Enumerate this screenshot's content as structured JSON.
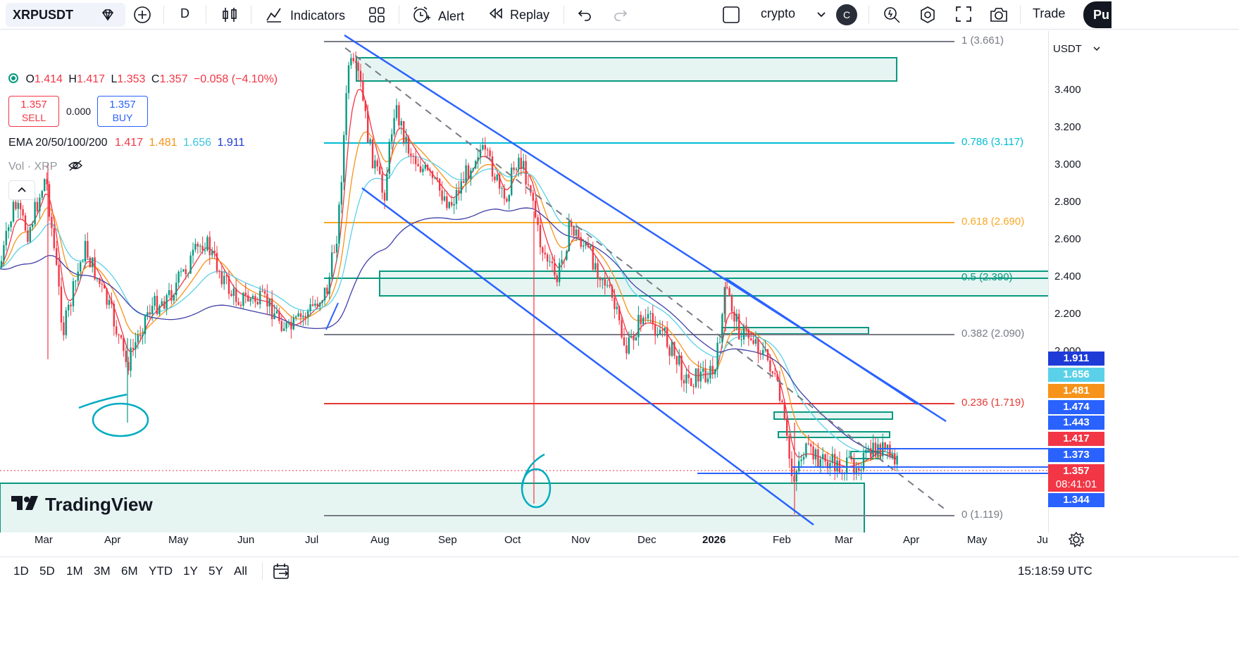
{
  "toolbar": {
    "symbol": "XRPUSDT",
    "interval": "D",
    "indicators_label": "Indicators",
    "alert_label": "Alert",
    "replay_label": "Replay",
    "layout_name": "crypto",
    "avatar_letter": "C",
    "trade_label": "Trade",
    "publish_label": "Pu"
  },
  "legend": {
    "o_label": "O",
    "o_value": "1.414",
    "h_label": "H",
    "h_value": "1.417",
    "l_label": "L",
    "l_value": "1.353",
    "c_label": "C",
    "c_value": "1.357",
    "change": "−0.058 (−4.10%)",
    "sell_price": "1.357",
    "sell_label": "SELL",
    "spread": "0.000",
    "buy_price": "1.357",
    "buy_label": "BUY",
    "ema_label": "EMA 20/50/100/200",
    "ema_values": [
      "1.417",
      "1.481",
      "1.656",
      "1.911"
    ],
    "vol_label": "Vol · XRP"
  },
  "fib_levels": [
    {
      "label": "1 (3.661)",
      "color": "#787b86"
    },
    {
      "label": "0.786 (3.117)",
      "color": "#00bcd4"
    },
    {
      "label": "0.618 (2.690)",
      "color": "#f9a825"
    },
    {
      "label": "0.5 (2.390)",
      "color": "#089981"
    },
    {
      "label": "0.382 (2.090)",
      "color": "#787b86"
    },
    {
      "label": "0.236 (1.719)",
      "color": "#e53935"
    },
    {
      "label": "0 (1.119)",
      "color": "#787b86"
    }
  ],
  "price_axis": {
    "currency": "USDT",
    "ticks": [
      "3.400",
      "3.200",
      "3.000",
      "2.800",
      "2.600",
      "2.400",
      "2.200",
      "2.000"
    ],
    "labels": [
      {
        "text": "1.911",
        "color": "#1e3bd8"
      },
      {
        "text": "1.656",
        "color": "#5ad1e8"
      },
      {
        "text": "1.481",
        "color": "#f7931a"
      },
      {
        "text": "1.474",
        "color": "#2962ff"
      },
      {
        "text": "1.443",
        "color": "#2962ff"
      },
      {
        "text": "1.417",
        "color": "#f23645"
      },
      {
        "text": "1.373",
        "color": "#2962ff"
      },
      {
        "text": "1.357",
        "color": "#f23645"
      },
      {
        "text": "08:41:01",
        "color": "#f23645"
      },
      {
        "text": "1.344",
        "color": "#2962ff"
      }
    ]
  },
  "time_axis": [
    "Mar",
    "Apr",
    "May",
    "Jun",
    "Jul",
    "Aug",
    "Sep",
    "Oct",
    "Nov",
    "Dec",
    "2026",
    "Feb",
    "Mar",
    "Apr",
    "May",
    "Ju"
  ],
  "watermark": "TradingView",
  "annotations": {
    "six_a": "6",
    "six_b": "6"
  },
  "bottom_bar": {
    "ranges": [
      "1D",
      "5D",
      "1M",
      "3M",
      "6M",
      "YTD",
      "1Y",
      "5Y",
      "All"
    ],
    "clock": "15:18:59 UTC"
  },
  "colors": {
    "up": "#089981",
    "down": "#f23645",
    "channel": "#2962ff",
    "ema20": "#f23645",
    "ema50": "#f7931a",
    "ema100": "#5ad1e8",
    "ema200": "#3f3fa8"
  }
}
